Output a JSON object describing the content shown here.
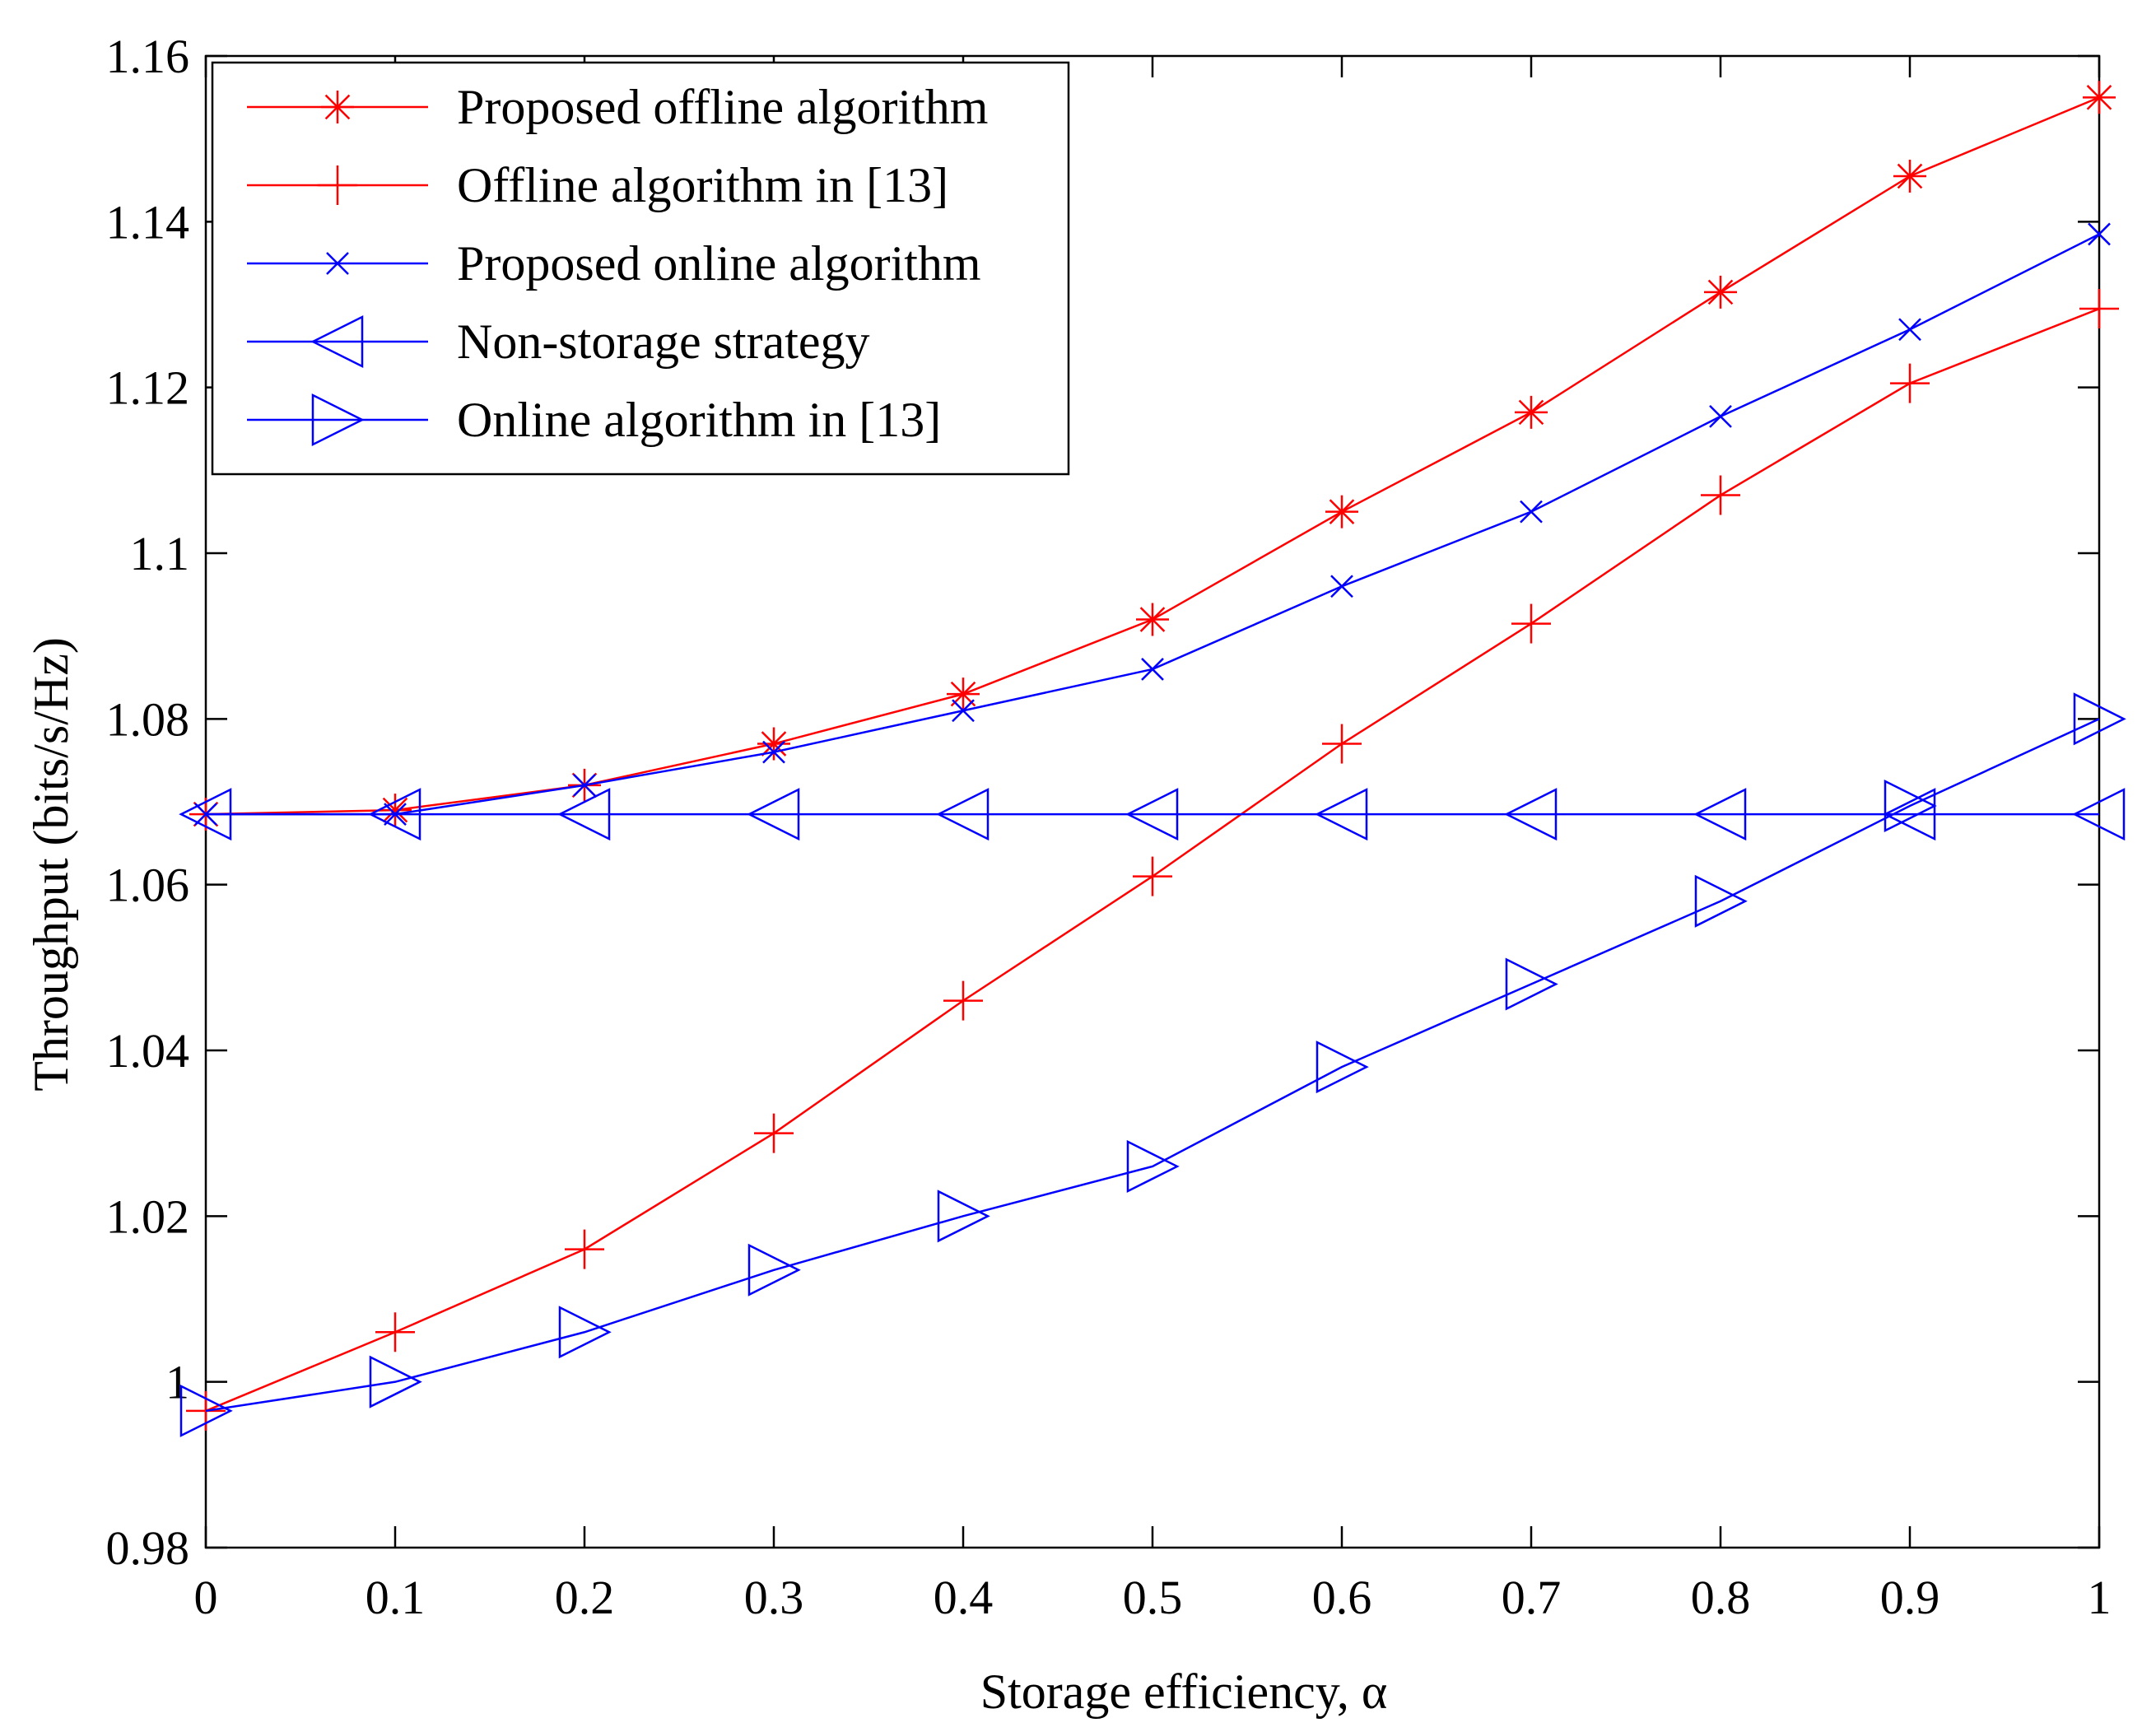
{
  "chart_data": {
    "type": "line",
    "title": "",
    "xlabel": "Storage efficiency, α",
    "ylabel": "Throughput (bits/s/Hz)",
    "xlim": [
      0,
      1
    ],
    "ylim": [
      0.98,
      1.16
    ],
    "grid": false,
    "legend_position": "top-left",
    "x": [
      0,
      0.1,
      0.2,
      0.3,
      0.4,
      0.5,
      0.6,
      0.7,
      0.8,
      0.9,
      1
    ],
    "xticks": [
      {
        "value": 0,
        "label": "0"
      },
      {
        "value": 0.1,
        "label": "0.1"
      },
      {
        "value": 0.2,
        "label": "0.2"
      },
      {
        "value": 0.3,
        "label": "0.3"
      },
      {
        "value": 0.4,
        "label": "0.4"
      },
      {
        "value": 0.5,
        "label": "0.5"
      },
      {
        "value": 0.6,
        "label": "0.6"
      },
      {
        "value": 0.7,
        "label": "0.7"
      },
      {
        "value": 0.8,
        "label": "0.8"
      },
      {
        "value": 0.9,
        "label": "0.9"
      },
      {
        "value": 1,
        "label": "1"
      }
    ],
    "yticks": [
      {
        "value": 0.98,
        "label": "0.98"
      },
      {
        "value": 1.0,
        "label": "1"
      },
      {
        "value": 1.02,
        "label": "1.02"
      },
      {
        "value": 1.04,
        "label": "1.04"
      },
      {
        "value": 1.06,
        "label": "1.06"
      },
      {
        "value": 1.08,
        "label": "1.08"
      },
      {
        "value": 1.1,
        "label": "1.1"
      },
      {
        "value": 1.12,
        "label": "1.12"
      },
      {
        "value": 1.14,
        "label": "1.14"
      },
      {
        "value": 1.16,
        "label": "1.16"
      }
    ],
    "series": [
      {
        "name": "Proposed offline algorithm",
        "color": "#ff0000",
        "marker": "asterisk",
        "values": [
          1.0685,
          1.069,
          1.072,
          1.077,
          1.083,
          1.092,
          1.105,
          1.117,
          1.1315,
          1.1455,
          1.155
        ]
      },
      {
        "name": "Offline algorithm in [13]",
        "color": "#ff0000",
        "marker": "plus",
        "values": [
          0.9965,
          1.006,
          1.016,
          1.03,
          1.046,
          1.061,
          1.077,
          1.0915,
          1.107,
          1.1205,
          1.1295
        ]
      },
      {
        "name": "Proposed online algorithm",
        "color": "#0000ff",
        "marker": "x",
        "values": [
          1.0685,
          1.0685,
          1.072,
          1.076,
          1.081,
          1.086,
          1.096,
          1.105,
          1.1165,
          1.127,
          1.1385
        ]
      },
      {
        "name": "Non-storage strategy",
        "color": "#0000ff",
        "marker": "triangle-left",
        "values": [
          1.0685,
          1.0685,
          1.0685,
          1.0685,
          1.0685,
          1.0685,
          1.0685,
          1.0685,
          1.0685,
          1.0685,
          1.0685
        ]
      },
      {
        "name": "Online algorithm in [13]",
        "color": "#0000ff",
        "marker": "triangle-right",
        "values": [
          0.9965,
          1.0,
          1.006,
          1.0135,
          1.02,
          1.026,
          1.038,
          1.048,
          1.058,
          1.0695,
          1.08
        ]
      }
    ]
  }
}
